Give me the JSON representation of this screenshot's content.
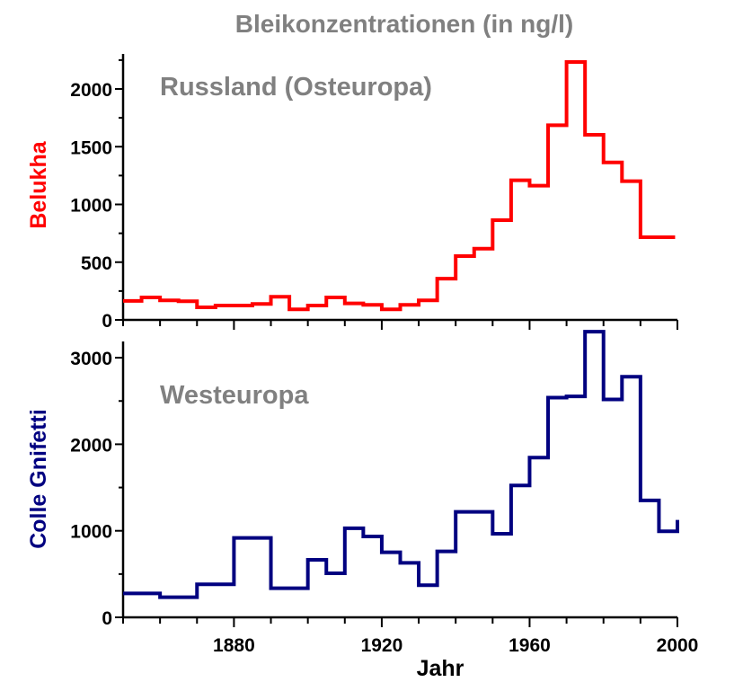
{
  "title": "Bleikonzentrationen (in ng/l)",
  "colors": {
    "top": "#ff0000",
    "bottom": "#000080",
    "annotation": "#808080",
    "axis": "#000000"
  },
  "chart_data": [
    {
      "type": "line",
      "step": "post",
      "annotation": "Russland (Osteuropa)",
      "ylabel": "Belukha",
      "xlabel": "",
      "xlim": [
        1850,
        2000
      ],
      "ylim": [
        0,
        2300
      ],
      "yticks": [
        0,
        500,
        1000,
        1500,
        2000
      ],
      "x": [
        1850,
        1855,
        1860,
        1865,
        1870,
        1875,
        1880,
        1885,
        1890,
        1895,
        1900,
        1905,
        1910,
        1915,
        1920,
        1925,
        1930,
        1935,
        1940,
        1945,
        1950,
        1955,
        1960,
        1965,
        1970,
        1975,
        1980,
        1985,
        1990,
        1995
      ],
      "y": [
        164,
        195,
        169,
        161,
        109,
        125,
        125,
        138,
        200,
        91,
        125,
        195,
        143,
        130,
        91,
        130,
        169,
        357,
        553,
        617,
        864,
        1209,
        1162,
        1686,
        2233,
        1603,
        1364,
        1201,
        716,
        716
      ]
    },
    {
      "type": "line",
      "step": "post",
      "annotation": "Westeuropa",
      "ylabel": "Colle Gnifetti",
      "xlabel": "Jahr",
      "xlim": [
        1850,
        2000
      ],
      "ylim": [
        0,
        3300
      ],
      "yticks": [
        0,
        1000,
        2000,
        3000
      ],
      "xticks": [
        1880,
        1920,
        1960,
        2000
      ],
      "x": [
        1850,
        1860,
        1870,
        1880,
        1890,
        1900,
        1905,
        1910,
        1915,
        1920,
        1925,
        1930,
        1935,
        1940,
        1950,
        1955,
        1960,
        1965,
        1970,
        1975,
        1980,
        1985,
        1990,
        1995,
        2000,
        2000
      ],
      "y": [
        277,
        232,
        381,
        918,
        336,
        665,
        509,
        1029,
        935,
        752,
        630,
        371,
        762,
        1219,
        966,
        1524,
        1846,
        2539,
        2553,
        3301,
        2518,
        2781,
        1351,
        994,
        994,
        1126
      ]
    }
  ]
}
